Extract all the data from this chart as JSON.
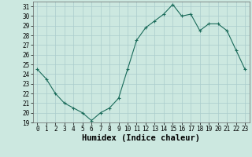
{
  "x": [
    0,
    1,
    2,
    3,
    4,
    5,
    6,
    7,
    8,
    9,
    10,
    11,
    12,
    13,
    14,
    15,
    16,
    17,
    18,
    19,
    20,
    21,
    22,
    23
  ],
  "y": [
    24.5,
    23.5,
    22.0,
    21.0,
    20.5,
    20.0,
    19.2,
    20.0,
    20.5,
    21.5,
    24.5,
    27.5,
    28.8,
    29.5,
    30.2,
    31.2,
    30.0,
    30.2,
    28.5,
    29.2,
    29.2,
    28.5,
    26.5,
    24.5
  ],
  "line_color": "#1a6b5a",
  "marker": "+",
  "bg_color": "#cce8e0",
  "grid_color": "#aacccc",
  "xlabel": "Humidex (Indice chaleur)",
  "xlim": [
    -0.5,
    23.5
  ],
  "ylim": [
    19,
    31.5
  ],
  "yticks": [
    19,
    20,
    21,
    22,
    23,
    24,
    25,
    26,
    27,
    28,
    29,
    30,
    31
  ],
  "xticks": [
    0,
    1,
    2,
    3,
    4,
    5,
    6,
    7,
    8,
    9,
    10,
    11,
    12,
    13,
    14,
    15,
    16,
    17,
    18,
    19,
    20,
    21,
    22,
    23
  ],
  "tick_label_fontsize": 5.5,
  "xlabel_fontsize": 7.5
}
